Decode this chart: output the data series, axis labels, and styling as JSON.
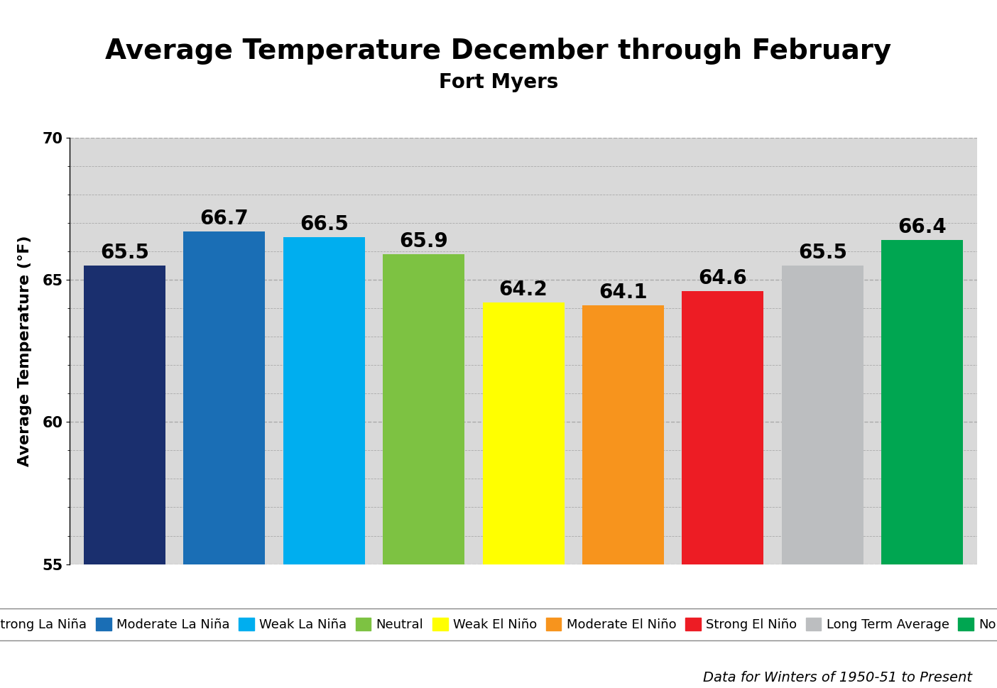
{
  "title": "Average Temperature December through February",
  "subtitle": "Fort Myers",
  "ylabel": "Average Temperature (°F)",
  "categories": [
    "Strong La Niña",
    "Moderate La Niña",
    "Weak La Niña",
    "Neutral",
    "Weak El Niño",
    "Moderate El Niño",
    "Strong El Niño",
    "Long Term Average",
    "Normal"
  ],
  "values": [
    65.5,
    66.7,
    66.5,
    65.9,
    64.2,
    64.1,
    64.6,
    65.5,
    66.4
  ],
  "bar_colors": [
    "#1a2f6e",
    "#1a6eb5",
    "#00aeef",
    "#7dc242",
    "#ffff00",
    "#f7941d",
    "#ed1c24",
    "#bcbec0",
    "#00a651"
  ],
  "ylim": [
    55,
    70
  ],
  "grid_color": "#aaaaaa",
  "bg_color": "#d9d9d9",
  "annotation_fontsize": 20,
  "title_fontsize": 28,
  "subtitle_fontsize": 20,
  "ylabel_fontsize": 16,
  "legend_fontsize": 13,
  "footnote": "Data for Winters of 1950-51 to Present",
  "footnote_fontsize": 14
}
